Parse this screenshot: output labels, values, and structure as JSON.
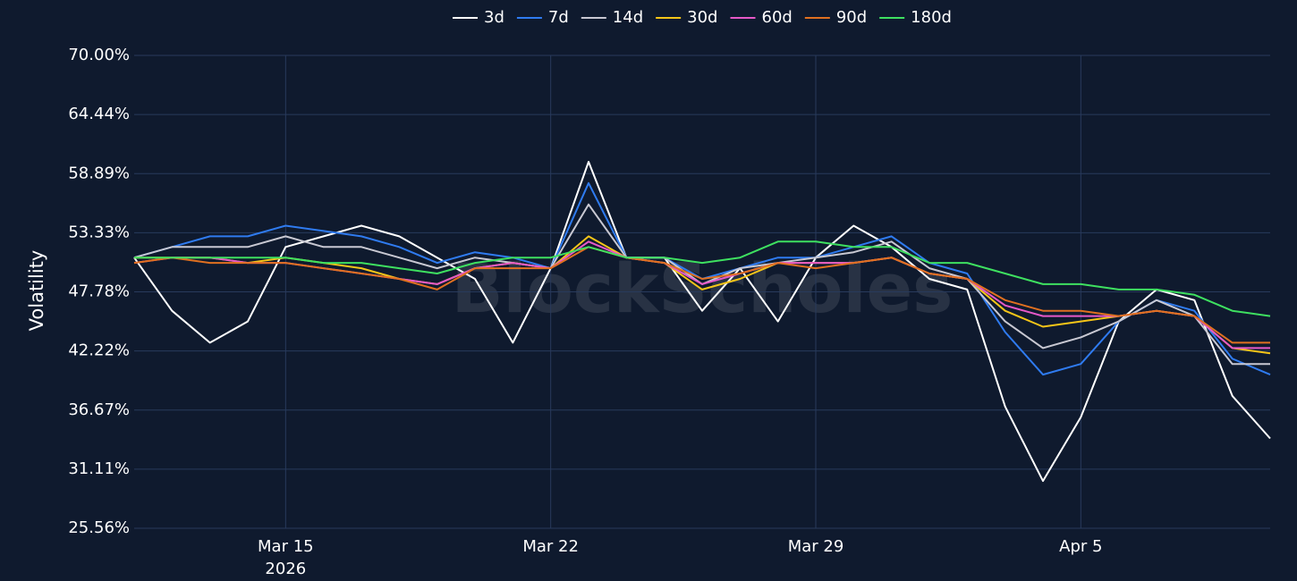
{
  "chart_data": {
    "type": "line",
    "y_label": "Volatility",
    "watermark": "BlockScholes",
    "x": [
      "2026-03-11",
      "2026-03-12",
      "2026-03-13",
      "2026-03-14",
      "2026-03-15",
      "2026-03-16",
      "2026-03-17",
      "2026-03-18",
      "2026-03-19",
      "2026-03-20",
      "2026-03-21",
      "2026-03-22",
      "2026-03-23",
      "2026-03-24",
      "2026-03-25",
      "2026-03-26",
      "2026-03-27",
      "2026-03-28",
      "2026-03-29",
      "2026-03-30",
      "2026-03-31",
      "2026-04-01",
      "2026-04-02",
      "2026-04-03",
      "2026-04-04",
      "2026-04-05",
      "2026-04-06",
      "2026-04-07",
      "2026-04-08",
      "2026-04-09",
      "2026-04-10"
    ],
    "xlim": [
      "2026-03-11",
      "2026-04-10"
    ],
    "xticks": [
      {
        "value": "2026-03-15",
        "label": "Mar 15",
        "sublabel": "2026"
      },
      {
        "value": "2026-03-22",
        "label": "Mar 22"
      },
      {
        "value": "2026-03-29",
        "label": "Mar 29"
      },
      {
        "value": "2026-04-05",
        "label": "Apr 5"
      }
    ],
    "ylim": [
      25.56,
      70
    ],
    "yticks": [
      {
        "value": 25.56,
        "label": "25.56%"
      },
      {
        "value": 31.11,
        "label": "31.11%"
      },
      {
        "value": 36.67,
        "label": "36.67%"
      },
      {
        "value": 42.22,
        "label": "42.22%"
      },
      {
        "value": 47.78,
        "label": "47.78%"
      },
      {
        "value": 53.33,
        "label": "53.33%"
      },
      {
        "value": 58.89,
        "label": "58.89%"
      },
      {
        "value": 64.44,
        "label": "64.44%"
      },
      {
        "value": 70,
        "label": "70.00%"
      }
    ],
    "grid": true,
    "legend": "top",
    "series": [
      {
        "name": "3d",
        "color": "#ffffff",
        "values": [
          51,
          46,
          43,
          45,
          52,
          53,
          54,
          53,
          51,
          49,
          43,
          50,
          60,
          51,
          51,
          46,
          50,
          45,
          51,
          54,
          52,
          49,
          48,
          37,
          30,
          36,
          45,
          48,
          47,
          38,
          34
        ]
      },
      {
        "name": "7d",
        "color": "#2f7bf0",
        "values": [
          51,
          52,
          53,
          53,
          54,
          53.5,
          53,
          52,
          50.5,
          51.5,
          51,
          50,
          58,
          51,
          51,
          49,
          50,
          51,
          51,
          52,
          53,
          50.5,
          49.5,
          44,
          40,
          41,
          45,
          47,
          46,
          41.5,
          40
        ]
      },
      {
        "name": "14d",
        "color": "#c8c8d2",
        "values": [
          51,
          52,
          52,
          52,
          53,
          52,
          52,
          51,
          50,
          51,
          50.5,
          50,
          56,
          51,
          51,
          48.5,
          50,
          50.5,
          51,
          51.5,
          52.5,
          50,
          49,
          45,
          42.5,
          43.5,
          45,
          47,
          45.5,
          41,
          41
        ]
      },
      {
        "name": "30d",
        "color": "#f5c518",
        "values": [
          51,
          51,
          51,
          50.5,
          51,
          50.5,
          50,
          49,
          48.5,
          50,
          50.5,
          50,
          53,
          51,
          50.5,
          48,
          49,
          50.5,
          50.5,
          50.5,
          51,
          49.5,
          49,
          46,
          44.5,
          45,
          45.5,
          46,
          45.5,
          42.5,
          42
        ]
      },
      {
        "name": "60d",
        "color": "#e659c8",
        "values": [
          50.5,
          51,
          51,
          50.5,
          50.5,
          50,
          49.5,
          49,
          48.5,
          50,
          50.5,
          50,
          52.5,
          51,
          50.5,
          48.5,
          49.5,
          50.5,
          50.5,
          50.5,
          51,
          49.5,
          49,
          46.5,
          45.5,
          45.5,
          45.5,
          46,
          45.5,
          42.5,
          42.5
        ]
      },
      {
        "name": "90d",
        "color": "#e07020",
        "values": [
          50.5,
          51,
          50.5,
          50.5,
          50.5,
          50,
          49.5,
          49,
          48,
          50,
          50,
          50,
          52,
          51,
          50.5,
          49,
          49.5,
          50.5,
          50,
          50.5,
          51,
          49.5,
          49,
          47,
          46,
          46,
          45.5,
          46,
          45.5,
          43,
          43
        ]
      },
      {
        "name": "180d",
        "color": "#3ee060",
        "values": [
          51,
          51,
          51,
          51,
          51,
          50.5,
          50.5,
          50,
          49.5,
          50.5,
          51,
          51,
          52,
          51,
          51,
          50.5,
          51,
          52.5,
          52.5,
          52,
          52,
          50.5,
          50.5,
          49.5,
          48.5,
          48.5,
          48,
          48,
          47.5,
          46,
          45.5
        ]
      }
    ]
  }
}
